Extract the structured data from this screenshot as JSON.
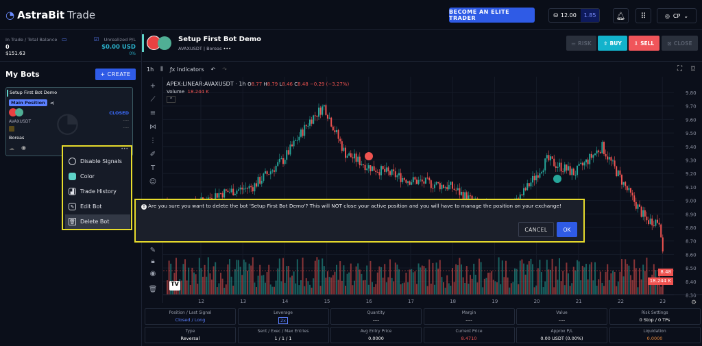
{
  "header": {
    "brand_main": "AstraBit",
    "brand_sub": "Trade",
    "elite_label": "BECOME AN ELITE TRADER",
    "credits": "12.00",
    "credits_secondary": "1.85",
    "user_initials": "CP"
  },
  "balance": {
    "label": "In Trade / Total Balance",
    "in_trade": "0",
    "total": "$151.63",
    "pl_label": "Unrealized P/L",
    "pl_value": "$0.00 USD",
    "pl_pct": "0%"
  },
  "bots": {
    "title": "My Bots",
    "create_label": "+ CREATE",
    "card": {
      "name": "Setup First Bot Demo",
      "badge": "Main Position",
      "status": "CLOSED",
      "symbol": "AVAXUSDT",
      "dash1": "----",
      "dash2": "----",
      "strategy": "Boreas",
      "more": "•••"
    }
  },
  "context_menu": [
    {
      "label": "Disable Signals",
      "icon": "eye-icon"
    },
    {
      "label": "Color",
      "icon": "color-swatch-icon",
      "color": "#5fd3c9"
    },
    {
      "label": "Trade History",
      "icon": "chart-icon"
    },
    {
      "label": "Edit Bot",
      "icon": "pencil-icon"
    },
    {
      "label": "Delete Bot",
      "icon": "trash-icon"
    }
  ],
  "bot_header": {
    "title": "Setup First Bot Demo",
    "subtitle": "AVAXUSDT | Boreas",
    "more": "•••",
    "risk": "RISK",
    "buy": "BUY",
    "sell": "SELL",
    "close": "CLOSE"
  },
  "chart_toolbar": {
    "interval": "1h",
    "indicators": "Indicators"
  },
  "chart": {
    "symbol": "APEX:LINEAR:AVAXUSDT · 1h",
    "o": "8.77",
    "h": "8.79",
    "l": "8.46",
    "c": "8.48",
    "change": "−0.29 (−3.27%)",
    "volume_label": "Volume",
    "volume_value": "18.244 K",
    "last_price": "8.48",
    "last_volume": "18.244 K",
    "price_ticks": [
      "9.80",
      "9.70",
      "9.60",
      "9.50",
      "9.40",
      "9.30",
      "9.20",
      "9.10",
      "9.00",
      "8.90",
      "8.80",
      "8.70",
      "8.60",
      "8.50",
      "8.40",
      "8.30"
    ],
    "time_ticks": [
      "12",
      "13",
      "14",
      "15",
      "16",
      "17",
      "18",
      "19",
      "20",
      "21",
      "22",
      "23"
    ],
    "up_color": "#26a69a",
    "down_color": "#ef5350"
  },
  "dialog": {
    "message": "Are you sure you want to delete the bot 'Setup First Bot Demo'? This will NOT close your active position and you will have to manage the position on your exchange!",
    "cancel": "CANCEL",
    "ok": "OK"
  },
  "stats": [
    {
      "label": "Position / Last Signal",
      "value": "Closed / Long"
    },
    {
      "label": "Leverage",
      "value": "2x"
    },
    {
      "label": "Quantity",
      "value": "----"
    },
    {
      "label": "Margin",
      "value": "----"
    },
    {
      "label": "Value",
      "value": "----"
    },
    {
      "label": "Risk Settings",
      "value": "0 Stop / 0 TPs"
    },
    {
      "label": "Type",
      "value": "Reversal"
    },
    {
      "label": "Sent / Exec / Max Entries",
      "value": "1 / 1 / 1"
    },
    {
      "label": "Avg Entry Price",
      "value": "0.0000"
    },
    {
      "label": "Current Price",
      "value": "8.4710"
    },
    {
      "label": "Approx P/L",
      "value": "0.00 USDT (0.00%)"
    },
    {
      "label": "Liquidation",
      "value": "0.0000"
    }
  ]
}
